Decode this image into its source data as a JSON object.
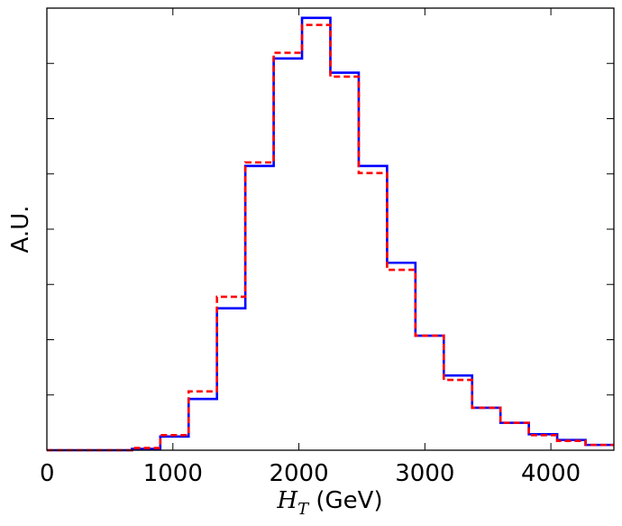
{
  "chart_data": {
    "type": "histogram",
    "xlabel_math": "H",
    "xlabel_sub": "T",
    "xlabel_unit": " (GeV)",
    "ylabel": "A.U.",
    "xlim": [
      0,
      4500
    ],
    "ylim": [
      0,
      1.0
    ],
    "x_ticks": [
      0,
      1000,
      2000,
      3000,
      4000
    ],
    "x_tick_labels": [
      "0",
      "1000",
      "2000",
      "3000",
      "4000"
    ],
    "y_ticks": [
      0.125,
      0.25,
      0.375,
      0.5,
      0.625,
      0.75,
      0.875
    ],
    "y_tick_labels_shown": false,
    "grid": false,
    "legend": "none",
    "bin_edges": [
      0,
      225,
      450,
      675,
      900,
      1125,
      1350,
      1575,
      1800,
      2025,
      2250,
      2475,
      2700,
      2925,
      3150,
      3375,
      3600,
      3825,
      4050,
      4275,
      4500
    ],
    "series": [
      {
        "color": "#0000ff",
        "linestyle": "solid",
        "values": [
          0,
          0,
          0,
          0.003,
          0.031,
          0.116,
          0.321,
          0.643,
          0.886,
          0.978,
          0.854,
          0.643,
          0.424,
          0.259,
          0.169,
          0.096,
          0.062,
          0.036,
          0.023,
          0.012
        ]
      },
      {
        "color": "#ff0000",
        "linestyle": "dashed",
        "values": [
          0,
          0,
          0,
          0.005,
          0.034,
          0.133,
          0.347,
          0.651,
          0.899,
          0.962,
          0.845,
          0.627,
          0.408,
          0.259,
          0.159,
          0.096,
          0.062,
          0.034,
          0.021,
          0.012
        ]
      }
    ]
  }
}
